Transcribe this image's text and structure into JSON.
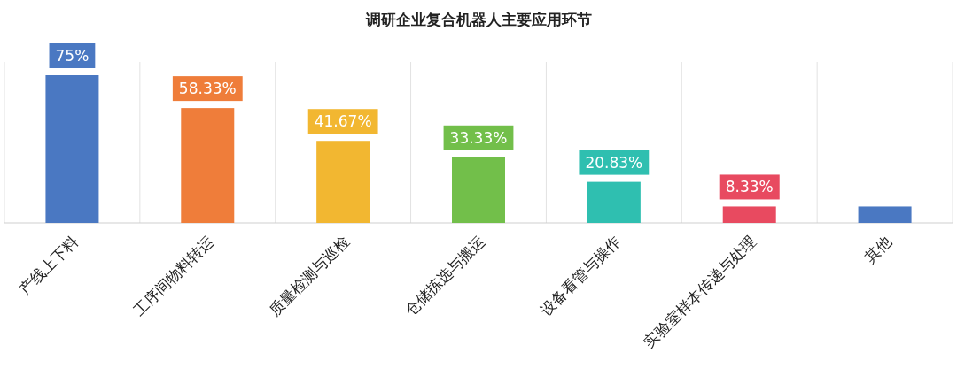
{
  "chart_data": {
    "type": "bar",
    "title": "调研企业复合机器人主要应用环节",
    "categories": [
      "产线上下料",
      "工序间物料转运",
      "质量检测与巡检",
      "仓储拣选与搬运",
      "设备看管与操作",
      "实验室样本传递与处理",
      "其他"
    ],
    "values": [
      75,
      58.33,
      41.67,
      33.33,
      20.83,
      8.33,
      8.33
    ],
    "value_labels": [
      "75%",
      "58.33%",
      "41.67%",
      "33.33%",
      "20.83%",
      "8.33%",
      null
    ],
    "colors": [
      "#4a78c2",
      "#ef7d3a",
      "#f2b731",
      "#72bf4a",
      "#2fbfb0",
      "#e84a60",
      "#4a78c2"
    ],
    "grid": "x"
  }
}
